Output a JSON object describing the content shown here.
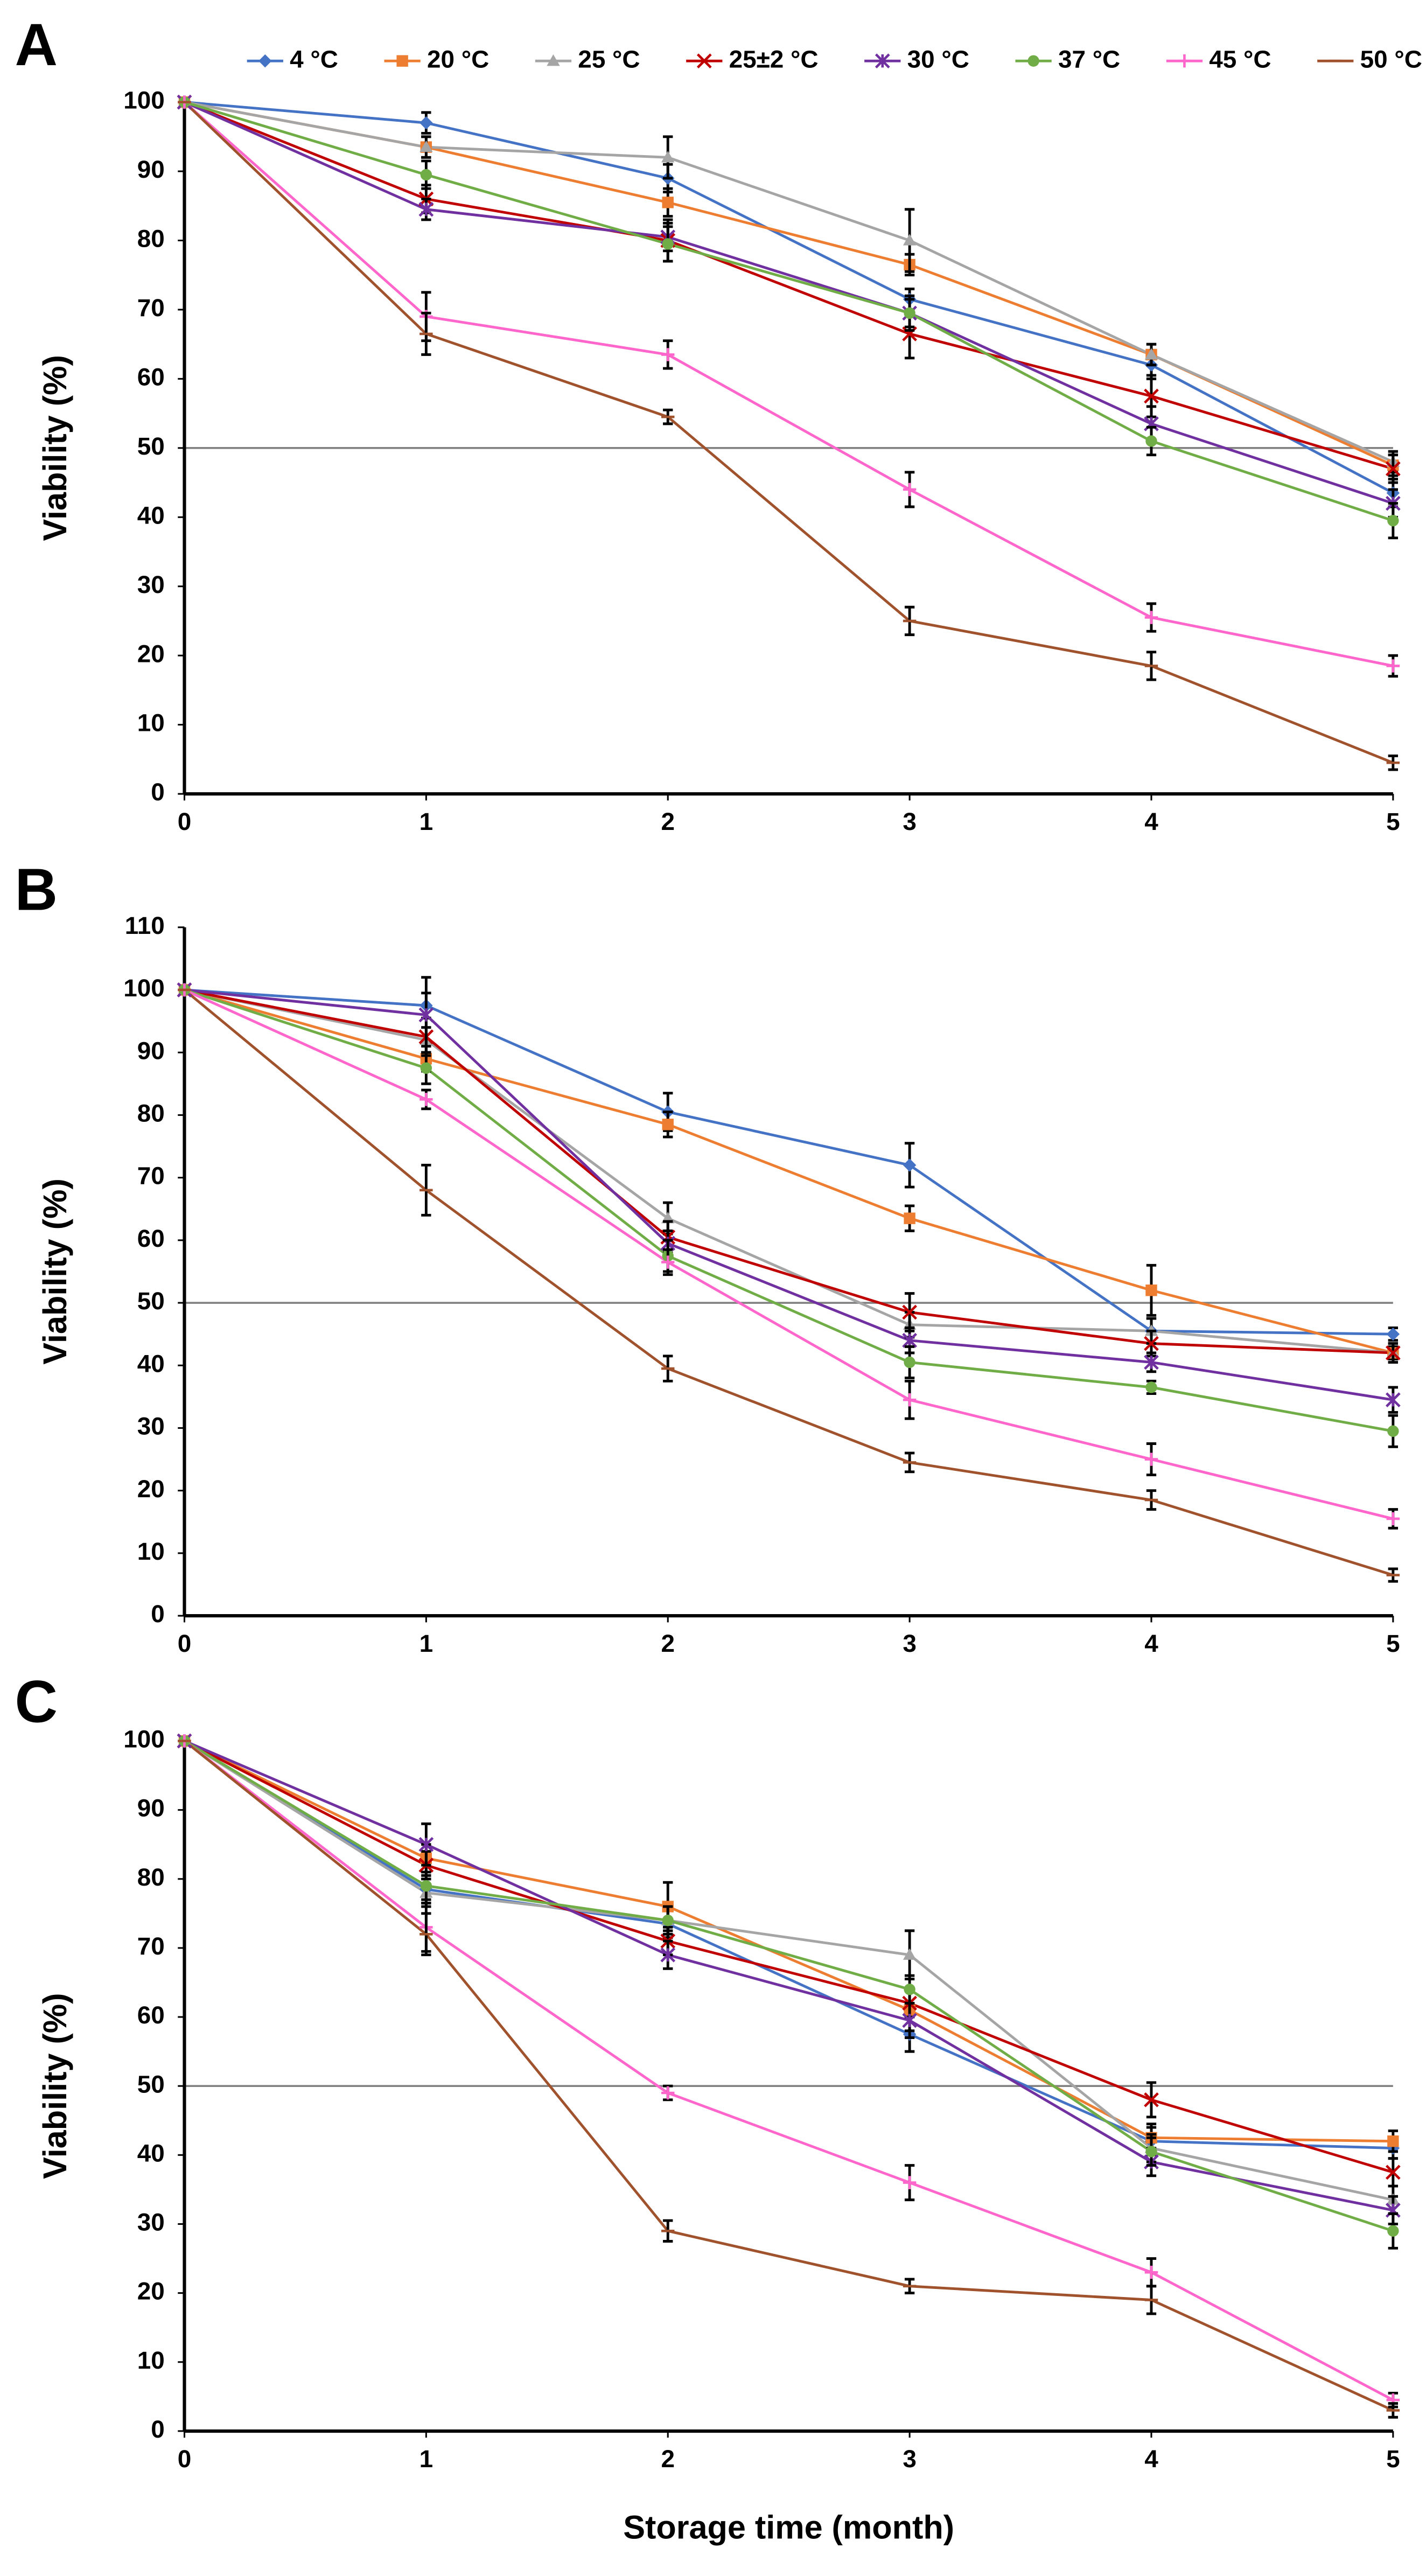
{
  "chart_data": [
    {
      "type": "line",
      "panel_label": "A",
      "y_label": "Viability (%)",
      "x": [
        0,
        1,
        2,
        3,
        4,
        5
      ],
      "xlim": [
        0,
        5
      ],
      "xticks": [
        0,
        1,
        2,
        3,
        4,
        5
      ],
      "ylim": [
        0,
        100
      ],
      "yticks": [
        0,
        10,
        20,
        30,
        40,
        50,
        60,
        70,
        80,
        90,
        100
      ],
      "hline": 50,
      "series": [
        {
          "name": "4 °C",
          "color": "#4472c4",
          "marker": "diamond",
          "values": [
            100,
            97,
            89,
            71.5,
            62,
            43.5
          ],
          "errors": [
            0,
            1.5,
            2,
            1.5,
            2,
            2
          ]
        },
        {
          "name": "20 °C",
          "color": "#ed7d31",
          "marker": "square",
          "values": [
            100,
            93.5,
            85.5,
            76.5,
            63.5,
            47.5
          ],
          "errors": [
            0,
            1.5,
            2,
            1.5,
            1.5,
            1.5
          ]
        },
        {
          "name": "25 °C",
          "color": "#a5a5a5",
          "marker": "triangle",
          "values": [
            100,
            93.5,
            92,
            80,
            63.5,
            48
          ],
          "errors": [
            0,
            1.5,
            3,
            4.5,
            1.5,
            1.5
          ]
        },
        {
          "name": "25±2 °C",
          "color": "#c00000",
          "marker": "x",
          "values": [
            100,
            86,
            80,
            66.5,
            57.5,
            47
          ],
          "errors": [
            0,
            2,
            3,
            3.5,
            3,
            2
          ]
        },
        {
          "name": "30 °C",
          "color": "#7030a0",
          "marker": "star",
          "values": [
            100,
            84.5,
            80.5,
            69.5,
            53.5,
            42
          ],
          "errors": [
            0,
            1.5,
            2,
            2.5,
            2.5,
            2
          ]
        },
        {
          "name": "37 °C",
          "color": "#70ad47",
          "marker": "circle",
          "values": [
            100,
            89.5,
            79.5,
            69.5,
            51,
            39.5
          ],
          "errors": [
            0,
            2,
            2.5,
            2,
            2,
            2.5
          ]
        },
        {
          "name": "45 °C",
          "color": "#ff66cc",
          "marker": "plus",
          "values": [
            100,
            69,
            63.5,
            44,
            25.5,
            18.5
          ],
          "errors": [
            0,
            3.5,
            2,
            2.5,
            2,
            1.5
          ]
        },
        {
          "name": "50 °C",
          "color": "#a0522d",
          "marker": "dash",
          "values": [
            100,
            66.5,
            54.5,
            25,
            18.5,
            4.5
          ],
          "errors": [
            0,
            3,
            1,
            2,
            2,
            1
          ]
        }
      ]
    },
    {
      "type": "line",
      "panel_label": "B",
      "y_label": "Viability (%)",
      "x": [
        0,
        1,
        2,
        3,
        4,
        5
      ],
      "xlim": [
        0,
        5
      ],
      "xticks": [
        0,
        1,
        2,
        3,
        4,
        5
      ],
      "ylim": [
        0,
        110
      ],
      "yticks": [
        0,
        10,
        20,
        30,
        40,
        50,
        60,
        70,
        80,
        90,
        100,
        110
      ],
      "hline": 50,
      "series": [
        {
          "name": "4 °C",
          "color": "#4472c4",
          "marker": "diamond",
          "values": [
            100,
            97.5,
            80.5,
            72,
            45.5,
            45
          ],
          "errors": [
            0,
            2,
            3,
            3.5,
            2,
            1
          ]
        },
        {
          "name": "20 °C",
          "color": "#ed7d31",
          "marker": "square",
          "values": [
            100,
            89,
            78.5,
            63.5,
            52,
            42
          ],
          "errors": [
            0,
            2,
            2,
            2,
            4,
            1
          ]
        },
        {
          "name": "25 °C",
          "color": "#a5a5a5",
          "marker": "triangle",
          "values": [
            100,
            92,
            63.5,
            46.5,
            45.5,
            42
          ],
          "errors": [
            0,
            2,
            2.5,
            2,
            2,
            1.5
          ]
        },
        {
          "name": "25±2 °C",
          "color": "#c00000",
          "marker": "x",
          "values": [
            100,
            92.5,
            60.5,
            48.5,
            43.5,
            42
          ],
          "errors": [
            0,
            3,
            2.5,
            3,
            2,
            1.5
          ]
        },
        {
          "name": "30 °C",
          "color": "#7030a0",
          "marker": "star",
          "values": [
            100,
            96,
            59.5,
            44,
            40.5,
            34.5
          ],
          "errors": [
            0,
            6,
            2,
            2,
            1.5,
            2
          ]
        },
        {
          "name": "37 °C",
          "color": "#70ad47",
          "marker": "circle",
          "values": [
            100,
            87.5,
            57.5,
            40.5,
            36.5,
            29.5
          ],
          "errors": [
            0,
            2.5,
            2.5,
            2.5,
            1,
            2.5
          ]
        },
        {
          "name": "45 °C",
          "color": "#ff66cc",
          "marker": "plus",
          "values": [
            100,
            82.5,
            56.5,
            34.5,
            25,
            15.5
          ],
          "errors": [
            0,
            1.5,
            2,
            3,
            2.5,
            1.5
          ]
        },
        {
          "name": "50 °C",
          "color": "#a0522d",
          "marker": "dash",
          "values": [
            100,
            68,
            39.5,
            24.5,
            18.5,
            6.5
          ],
          "errors": [
            0,
            4,
            2,
            1.5,
            1.5,
            1
          ]
        }
      ]
    },
    {
      "type": "line",
      "panel_label": "C",
      "y_label": "Viability (%)",
      "x_label": "Storage time (month)",
      "x": [
        0,
        1,
        2,
        3,
        4,
        5
      ],
      "xlim": [
        0,
        5
      ],
      "xticks": [
        0,
        1,
        2,
        3,
        4,
        5
      ],
      "ylim": [
        0,
        100
      ],
      "yticks": [
        0,
        10,
        20,
        30,
        40,
        50,
        60,
        70,
        80,
        90,
        100
      ],
      "hline": 50,
      "series": [
        {
          "name": "4 °C",
          "color": "#4472c4",
          "marker": "diamond",
          "values": [
            100,
            78.5,
            73.5,
            57.5,
            42,
            41
          ],
          "errors": [
            0,
            2,
            2,
            2.5,
            2,
            1.5
          ]
        },
        {
          "name": "20 °C",
          "color": "#ed7d31",
          "marker": "square",
          "values": [
            100,
            83,
            76,
            61,
            42.5,
            42
          ],
          "errors": [
            0,
            2,
            3.5,
            3,
            2,
            1.5
          ]
        },
        {
          "name": "25 °C",
          "color": "#a5a5a5",
          "marker": "triangle",
          "values": [
            100,
            78,
            74,
            69,
            41,
            33.5
          ],
          "errors": [
            0,
            2,
            2,
            3.5,
            2,
            2
          ]
        },
        {
          "name": "25±2 °C",
          "color": "#c00000",
          "marker": "x",
          "values": [
            100,
            82,
            71,
            62,
            48,
            37.5
          ],
          "errors": [
            0,
            2,
            2,
            2,
            2.5,
            2
          ]
        },
        {
          "name": "30 °C",
          "color": "#7030a0",
          "marker": "star",
          "values": [
            100,
            85,
            69,
            59.5,
            39,
            32
          ],
          "errors": [
            0,
            3,
            2,
            2.5,
            2,
            2
          ]
        },
        {
          "name": "37 °C",
          "color": "#70ad47",
          "marker": "circle",
          "values": [
            100,
            79,
            74,
            64,
            40.5,
            29
          ],
          "errors": [
            0,
            2,
            2,
            2,
            2,
            2.5
          ]
        },
        {
          "name": "45 °C",
          "color": "#ff66cc",
          "marker": "plus",
          "values": [
            100,
            73,
            49,
            36,
            23,
            4.5
          ],
          "errors": [
            0,
            3.5,
            1,
            2.5,
            2,
            1
          ]
        },
        {
          "name": "50 °C",
          "color": "#a0522d",
          "marker": "dash",
          "values": [
            100,
            72,
            29,
            21,
            19,
            3
          ],
          "errors": [
            0,
            3,
            1.5,
            1,
            2,
            1
          ]
        }
      ]
    }
  ]
}
